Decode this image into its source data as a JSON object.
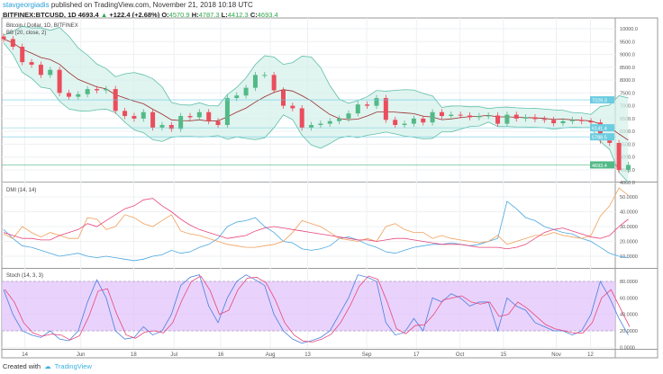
{
  "header": {
    "user": "stavgeorgiadis",
    "published": "published on TradingView.com, November 21, 2018 10:18 UTC",
    "symbol": "BITFINEX:BTCUSD, 1D",
    "last": "4693.4",
    "change": "+122.4 (+2.68%)",
    "o_label": "O:",
    "o": "4570.9",
    "h_label": "H:",
    "h": "4787.3",
    "l_label": "L:",
    "l": "4412.3",
    "c_label": "C:",
    "c": "4693.4"
  },
  "footer": {
    "created": "Created with",
    "brand": "TradingView"
  },
  "colors": {
    "up": "#53b987",
    "down": "#eb4d5c",
    "bb_fill": "#d3efea",
    "bb_line": "#5fbfa8",
    "bb_mid": "#9b2c2c",
    "plus_di": "#4aa8e0",
    "minus_di": "#f0a05a",
    "adx": "#e8457a",
    "stoch_k": "#4a7ee0",
    "stoch_d": "#e8457a",
    "stoch_band": "#e3c8fb",
    "last_tag": "#53b987",
    "tag_blue": "#6ccce0"
  },
  "chart_data": [
    {
      "type": "candlestick",
      "title": "Bitcoin / Dollar, 1D, BITFINEX",
      "indicator": "BB (20, close, 2)",
      "ylim": [
        4000,
        10300
      ],
      "yticks": [
        "10000.0",
        "9500.0",
        "9000.0",
        "8500.0",
        "8000.0",
        "7500.0",
        "7000.0",
        "6500.0",
        "6000.0",
        "5500.0",
        "5000.0",
        "4500.0",
        "4000.0"
      ],
      "ytick_values": [
        10000,
        9500,
        9000,
        8500,
        8000,
        7500,
        7000,
        6500,
        6000,
        5500,
        5000,
        4500,
        4000
      ],
      "price_tags": [
        {
          "label": "7229.3",
          "value": 7229.3
        },
        {
          "label": "6141.4",
          "value": 6141.4
        },
        {
          "label": "5788.5",
          "value": 5788.5
        },
        {
          "label": "4693.4",
          "value": 4693.4
        }
      ],
      "start_day": "May 6",
      "step_days": 3,
      "close": [
        9600,
        9300,
        8700,
        8600,
        8200,
        8400,
        7500,
        7350,
        7450,
        7650,
        7600,
        7650,
        6800,
        6600,
        6500,
        6750,
        6150,
        6250,
        6100,
        6600,
        6550,
        6750,
        6400,
        6250,
        7300,
        7400,
        7700,
        8200,
        8200,
        7600,
        7000,
        6900,
        6150,
        6250,
        6300,
        6400,
        6500,
        6700,
        7050,
        7000,
        7300,
        6450,
        6250,
        6300,
        6500,
        6350,
        6750,
        6600,
        6650,
        6620,
        6550,
        6600,
        6620,
        6300,
        6650,
        6500,
        6550,
        6480,
        6450,
        6320,
        6400,
        6450,
        6400,
        6350,
        5650,
        5550,
        4500,
        4693
      ]
    },
    {
      "type": "line",
      "title": "DMI (14, 14)",
      "ylim": [
        5,
        58
      ],
      "yticks": [
        "50.0000",
        "40.0000",
        "30.0000",
        "20.0000",
        "10.0000"
      ],
      "ytick_values": [
        50,
        40,
        30,
        20,
        10
      ],
      "series": [
        {
          "name": "+DI",
          "values": [
            28,
            22,
            17,
            16,
            14,
            12,
            10,
            11,
            12,
            10,
            9,
            10,
            9,
            8,
            7,
            8,
            10,
            11,
            14,
            12,
            13,
            16,
            18,
            22,
            30,
            33,
            34,
            36,
            30,
            26,
            20,
            19,
            15,
            14,
            15,
            17,
            22,
            23,
            21,
            18,
            16,
            13,
            12,
            14,
            16,
            17,
            18,
            18,
            19,
            18,
            17,
            18,
            20,
            22,
            47,
            42,
            36,
            34,
            30,
            28,
            26,
            25,
            22,
            20,
            16,
            12,
            10,
            9
          ]
        },
        {
          "name": "-DI",
          "values": [
            25,
            22,
            30,
            26,
            23,
            26,
            24,
            22,
            22,
            36,
            35,
            28,
            30,
            38,
            36,
            32,
            30,
            34,
            38,
            27,
            25,
            24,
            22,
            20,
            18,
            17,
            16,
            16,
            17,
            18,
            20,
            26,
            34,
            32,
            30,
            26,
            22,
            21,
            20,
            22,
            20,
            30,
            32,
            28,
            26,
            26,
            22,
            24,
            22,
            21,
            20,
            19,
            20,
            24,
            18,
            20,
            22,
            24,
            24,
            26,
            24,
            23,
            22,
            24,
            37,
            44,
            56,
            51
          ]
        },
        {
          "name": "ADX",
          "values": [
            26,
            24,
            22,
            22,
            21,
            21,
            24,
            26,
            28,
            32,
            30,
            34,
            38,
            42,
            44,
            48,
            49,
            44,
            40,
            35,
            31,
            28,
            26,
            24,
            22,
            23,
            24,
            27,
            29,
            30,
            29,
            28,
            27,
            26,
            25,
            24,
            23,
            22,
            21,
            21,
            20,
            21,
            22,
            22,
            21,
            20,
            19,
            18,
            18,
            18,
            17,
            16,
            16,
            16,
            15,
            16,
            18,
            22,
            26,
            28,
            29,
            27,
            25,
            23,
            22,
            24,
            30,
            35
          ]
        }
      ]
    },
    {
      "type": "line",
      "title": "Stoch (14, 3, 3)",
      "ylim": [
        0,
        90
      ],
      "yticks": [
        "80.0000",
        "60.0000",
        "40.0000",
        "20.0000",
        "0.0000"
      ],
      "ytick_values": [
        80,
        60,
        40,
        20,
        0
      ],
      "bands": [
        20,
        80
      ],
      "series": [
        {
          "name": "%K",
          "values": [
            70,
            40,
            20,
            15,
            12,
            20,
            10,
            8,
            20,
            55,
            82,
            60,
            20,
            10,
            12,
            25,
            15,
            20,
            40,
            75,
            85,
            88,
            50,
            30,
            60,
            80,
            88,
            82,
            75,
            40,
            20,
            10,
            5,
            8,
            12,
            20,
            40,
            60,
            88,
            85,
            80,
            30,
            15,
            18,
            35,
            20,
            60,
            55,
            65,
            60,
            50,
            55,
            55,
            20,
            60,
            50,
            45,
            30,
            25,
            20,
            20,
            15,
            20,
            40,
            80,
            60,
            35,
            15
          ]
        }
      ]
    },
    {
      "type": "axis",
      "xticks": [
        "14",
        "Jun",
        "18",
        "Jul",
        "16",
        "Aug",
        "13",
        "Sep",
        "17",
        "Oct",
        "15",
        "Nov",
        "12"
      ],
      "xtick_days": [
        8,
        26,
        43,
        56,
        71,
        87,
        99,
        118,
        134,
        148,
        162,
        179,
        190
      ]
    }
  ]
}
